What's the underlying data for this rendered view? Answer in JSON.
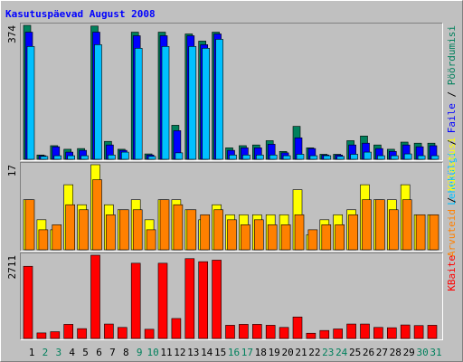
{
  "title": "Kasutuspäevad August 2008",
  "legend_separator": "/",
  "chart_data": [
    {
      "type": "bar",
      "ylim": [
        0,
        374
      ],
      "yticks": [
        374
      ],
      "series": [
        {
          "name": "Pöördumisi",
          "color": "#00805c",
          "values": [
            374,
            12,
            38,
            28,
            30,
            372,
            50,
            28,
            355,
            15,
            355,
            95,
            350,
            330,
            355,
            32,
            38,
            40,
            52,
            22,
            92,
            32,
            14,
            14,
            52,
            65,
            40,
            28,
            48,
            45,
            45
          ]
        },
        {
          "name": "Faile",
          "color": "#0000ff",
          "values": [
            355,
            10,
            35,
            20,
            25,
            355,
            40,
            25,
            345,
            12,
            345,
            80,
            345,
            320,
            350,
            25,
            32,
            32,
            42,
            18,
            60,
            30,
            12,
            12,
            40,
            45,
            30,
            22,
            40,
            35,
            38
          ]
        },
        {
          "name": "Lehekülgi",
          "color": "#00c0ff",
          "values": [
            315,
            8,
            10,
            10,
            10,
            320,
            12,
            20,
            310,
            8,
            315,
            18,
            315,
            310,
            335,
            12,
            12,
            12,
            12,
            10,
            14,
            10,
            10,
            8,
            14,
            20,
            10,
            10,
            15,
            10,
            10
          ]
        }
      ]
    },
    {
      "type": "bar",
      "ylim": [
        0,
        17
      ],
      "yticks": [
        17
      ],
      "series": [
        {
          "name": "Külastusi",
          "color": "#ffff00",
          "values": [
            10,
            6,
            4,
            13,
            9,
            17,
            9,
            8,
            10,
            6,
            10,
            10,
            8,
            6,
            9,
            7,
            7,
            7,
            7,
            7,
            12,
            3,
            6,
            7,
            8,
            13,
            10,
            10,
            13,
            7,
            7
          ]
        },
        {
          "name": "Arvuteid",
          "color": "#ff8000",
          "values": [
            10,
            4,
            5,
            9,
            8,
            14,
            7,
            8,
            8,
            4,
            10,
            9,
            8,
            7,
            8,
            6,
            5,
            6,
            5,
            5,
            7,
            4,
            5,
            5,
            7,
            10,
            10,
            8,
            10,
            7,
            7
          ]
        }
      ]
    },
    {
      "type": "bar",
      "ylim": [
        0,
        2711
      ],
      "yticks": [
        2711
      ],
      "categories": [
        "1",
        "2",
        "3",
        "4",
        "5",
        "6",
        "7",
        "8",
        "9",
        "10",
        "11",
        "12",
        "13",
        "14",
        "15",
        "16",
        "17",
        "18",
        "19",
        "20",
        "21",
        "22",
        "23",
        "24",
        "25",
        "26",
        "27",
        "28",
        "29",
        "30",
        "31"
      ],
      "category_colors": [
        "#000000",
        "#00805c",
        "#00805c",
        "#000000",
        "#000000",
        "#000000",
        "#000000",
        "#000000",
        "#00805c",
        "#00805c",
        "#000000",
        "#000000",
        "#000000",
        "#000000",
        "#000000",
        "#00805c",
        "#00805c",
        "#000000",
        "#000000",
        "#000000",
        "#000000",
        "#000000",
        "#00805c",
        "#00805c",
        "#000000",
        "#000000",
        "#000000",
        "#000000",
        "#000000",
        "#00805c",
        "#00805c"
      ],
      "series": [
        {
          "name": "KBaite",
          "color": "#ff0000",
          "values": [
            2350,
            180,
            220,
            460,
            320,
            2711,
            470,
            360,
            2450,
            300,
            2450,
            650,
            2600,
            2500,
            2550,
            430,
            460,
            460,
            430,
            360,
            700,
            170,
            260,
            310,
            470,
            470,
            360,
            350,
            440,
            420,
            430
          ]
        }
      ]
    }
  ]
}
